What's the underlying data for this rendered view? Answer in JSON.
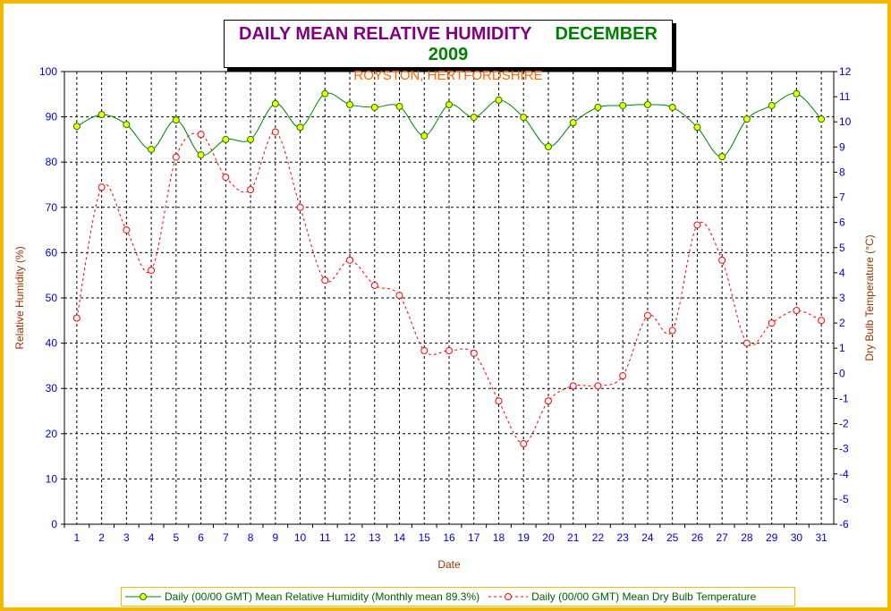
{
  "chart_data": {
    "type": "line",
    "title": "DAILY MEAN RELATIVE HUMIDITY",
    "title_right": "DECEMBER 2009",
    "subtitle": "ROYSTON, HERTFORDSHIRE",
    "xlabel": "Date",
    "ylabel": "Relative Humidity (%)",
    "y2label": "Dry Bulb Temperature (°C)",
    "x": [
      1,
      2,
      3,
      4,
      5,
      6,
      7,
      8,
      9,
      10,
      11,
      12,
      13,
      14,
      15,
      16,
      17,
      18,
      19,
      20,
      21,
      22,
      23,
      24,
      25,
      26,
      27,
      28,
      29,
      30,
      31
    ],
    "ylim": [
      0,
      100
    ],
    "yticks": [
      0,
      10,
      20,
      30,
      40,
      50,
      60,
      70,
      80,
      90,
      100
    ],
    "y2lim": [
      -6,
      12
    ],
    "y2ticks": [
      -6,
      -5,
      -4,
      -3,
      -2,
      -1,
      0,
      1,
      2,
      3,
      4,
      5,
      6,
      7,
      8,
      9,
      10,
      11,
      12
    ],
    "grid": true,
    "legend_position": "bottom",
    "series": [
      {
        "name": "Daily (00/00 GMT) Mean Relative Humidity (Monthly mean 89.3%)",
        "axis": "left",
        "color": "#008000",
        "marker_color": "#ffff00",
        "values": [
          87.9,
          90.5,
          88.3,
          82.8,
          89.3,
          81.6,
          85.0,
          85.0,
          92.9,
          87.7,
          95.1,
          92.7,
          92.1,
          92.3,
          85.8,
          92.7,
          89.9,
          93.7,
          89.9,
          83.4,
          88.7,
          92.1,
          92.5,
          92.7,
          92.1,
          87.7,
          81.2,
          89.5,
          92.5,
          95.1,
          89.5
        ]
      },
      {
        "name": "Daily (00/00 GMT) Mean Dry Bulb Temperature",
        "axis": "right",
        "color": "#ff0000",
        "values": [
          2.2,
          7.4,
          5.7,
          4.1,
          8.6,
          9.5,
          7.8,
          7.3,
          9.6,
          6.6,
          3.7,
          4.5,
          3.5,
          3.1,
          0.9,
          0.9,
          0.8,
          -1.1,
          -2.8,
          -1.1,
          -0.5,
          -0.5,
          -0.1,
          2.3,
          1.7,
          5.9,
          4.5,
          1.2,
          2.0,
          2.5,
          2.1
        ]
      }
    ]
  }
}
